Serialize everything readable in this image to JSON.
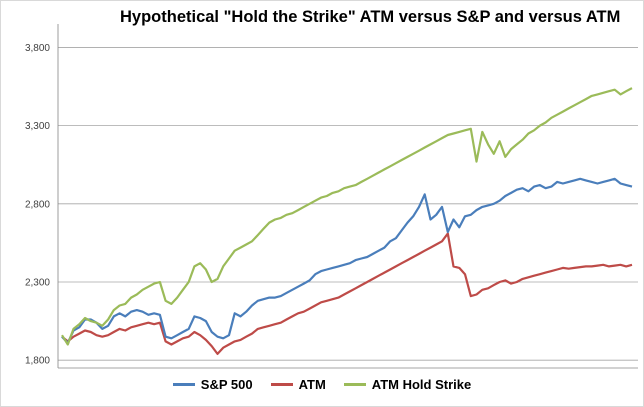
{
  "chart_data": {
    "type": "line",
    "title": "Hypothetical \"Hold the Strike\" ATM versus S&P and versus ATM",
    "xlabel": "",
    "ylabel": "",
    "ylim": [
      1750,
      3950
    ],
    "yticks": [
      1800,
      2300,
      2800,
      3300,
      3800
    ],
    "ytick_labels": [
      "1,800",
      "2,300",
      "2,800",
      "3,300",
      "3,800"
    ],
    "grid": true,
    "legend_position": "bottom",
    "n_points": 100,
    "series": [
      {
        "name": "S&P 500",
        "color": "#4a7ebb",
        "values": [
          1950,
          1910,
          1990,
          2010,
          2060,
          2060,
          2040,
          2000,
          2020,
          2080,
          2100,
          2080,
          2110,
          2120,
          2110,
          2090,
          2100,
          2090,
          1950,
          1940,
          1960,
          1980,
          2000,
          2080,
          2070,
          2050,
          1980,
          1950,
          1940,
          1960,
          2100,
          2080,
          2110,
          2150,
          2180,
          2190,
          2200,
          2200,
          2210,
          2230,
          2250,
          2270,
          2290,
          2310,
          2350,
          2370,
          2380,
          2390,
          2400,
          2410,
          2420,
          2440,
          2450,
          2460,
          2480,
          2500,
          2520,
          2560,
          2580,
          2630,
          2680,
          2720,
          2780,
          2860,
          2700,
          2730,
          2780,
          2620,
          2700,
          2650,
          2720,
          2730,
          2760,
          2780,
          2790,
          2800,
          2820,
          2850,
          2870,
          2890,
          2900,
          2880,
          2910,
          2920,
          2900,
          2910,
          2940,
          2930,
          2940,
          2950,
          2960,
          2950,
          2940,
          2930,
          2940,
          2950,
          2960,
          2930,
          2920,
          2910
        ]
      },
      {
        "name": "ATM",
        "color": "#be4b48",
        "values": [
          1950,
          1920,
          1950,
          1970,
          1990,
          1980,
          1960,
          1950,
          1960,
          1980,
          2000,
          1990,
          2010,
          2020,
          2030,
          2040,
          2030,
          2040,
          1920,
          1900,
          1920,
          1940,
          1950,
          1980,
          1960,
          1930,
          1890,
          1840,
          1880,
          1900,
          1920,
          1930,
          1950,
          1970,
          2000,
          2010,
          2020,
          2030,
          2040,
          2060,
          2080,
          2100,
          2110,
          2130,
          2150,
          2170,
          2180,
          2190,
          2200,
          2220,
          2240,
          2260,
          2280,
          2300,
          2320,
          2340,
          2360,
          2380,
          2400,
          2420,
          2440,
          2460,
          2480,
          2500,
          2520,
          2540,
          2560,
          2610,
          2400,
          2390,
          2350,
          2210,
          2220,
          2250,
          2260,
          2280,
          2300,
          2310,
          2290,
          2300,
          2320,
          2330,
          2340,
          2350,
          2360,
          2370,
          2380,
          2390,
          2385,
          2390,
          2395,
          2400,
          2400,
          2405,
          2410,
          2400,
          2405,
          2410,
          2400,
          2410
        ]
      },
      {
        "name": "ATM Hold Strike",
        "color": "#9bbb59",
        "values": [
          1960,
          1900,
          2000,
          2030,
          2070,
          2050,
          2040,
          2020,
          2060,
          2120,
          2150,
          2160,
          2200,
          2220,
          2250,
          2270,
          2290,
          2300,
          2180,
          2160,
          2200,
          2250,
          2300,
          2400,
          2420,
          2380,
          2300,
          2320,
          2400,
          2450,
          2500,
          2520,
          2540,
          2560,
          2600,
          2640,
          2680,
          2700,
          2710,
          2730,
          2740,
          2760,
          2780,
          2800,
          2820,
          2840,
          2850,
          2870,
          2880,
          2900,
          2910,
          2920,
          2940,
          2960,
          2980,
          3000,
          3020,
          3040,
          3060,
          3080,
          3100,
          3120,
          3140,
          3160,
          3180,
          3200,
          3220,
          3240,
          3250,
          3260,
          3270,
          3280,
          3070,
          3260,
          3180,
          3120,
          3200,
          3100,
          3150,
          3180,
          3210,
          3250,
          3270,
          3300,
          3320,
          3350,
          3370,
          3390,
          3410,
          3430,
          3450,
          3470,
          3490,
          3500,
          3510,
          3520,
          3530,
          3500,
          3520,
          3540
        ]
      }
    ]
  }
}
